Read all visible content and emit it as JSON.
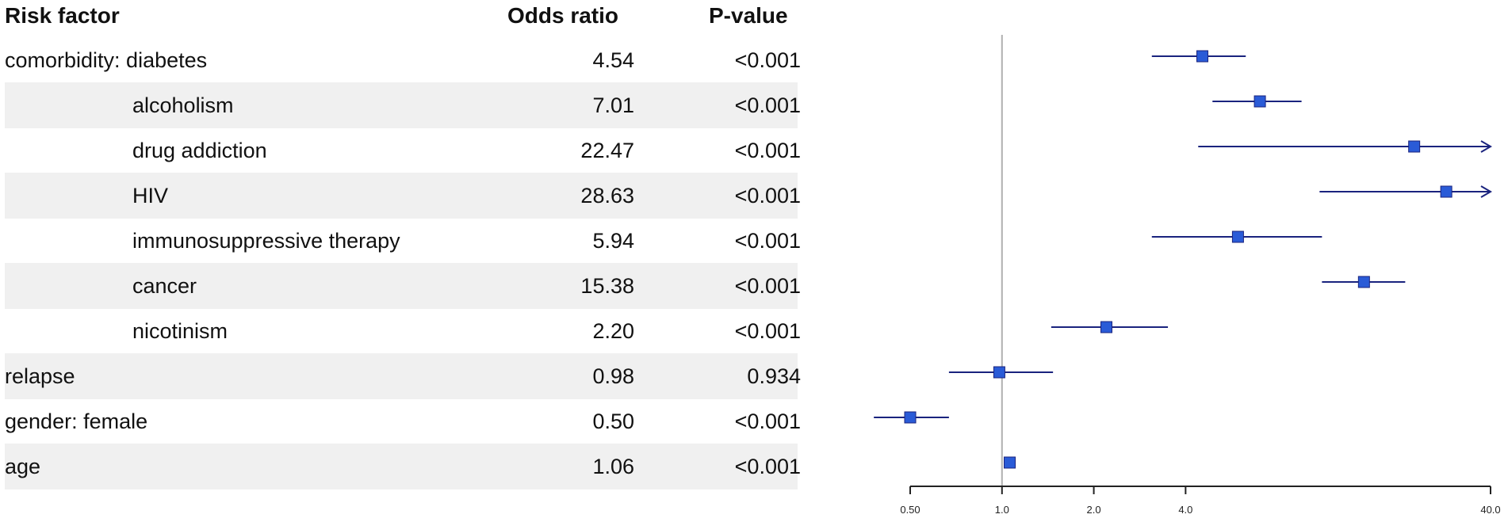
{
  "headers": {
    "factor": "Risk factor",
    "or": "Odds ratio",
    "p": "P-value"
  },
  "colors": {
    "marker": "#2a5bd7",
    "ci_line": "#1a237e",
    "reference_line": "#b0b0b0",
    "row_shade": "#f0f0f0"
  },
  "chart_data": {
    "type": "forest",
    "x_scale": "log",
    "xlim": [
      0.5,
      40.0
    ],
    "reference_value": 1.0,
    "x_ticks": [
      {
        "value": 0.5,
        "label": "0.50"
      },
      {
        "value": 1.0,
        "label": "1.0"
      },
      {
        "value": 2.0,
        "label": "2.0"
      },
      {
        "value": 4.0,
        "label": "4.0"
      },
      {
        "value": 40.0,
        "label": "40.0"
      }
    ],
    "rows": [
      {
        "label": "comorbidity: diabetes",
        "indent": false,
        "or_text": "4.54",
        "p_text": "<0.001",
        "or": 4.54,
        "lo": 3.1,
        "hi": 6.3,
        "shaded": false
      },
      {
        "label": "alcoholism",
        "indent": true,
        "or_text": "7.01",
        "p_text": "<0.001",
        "or": 7.01,
        "lo": 4.9,
        "hi": 9.6,
        "shaded": true
      },
      {
        "label": "drug addiction",
        "indent": true,
        "or_text": "22.47",
        "p_text": "<0.001",
        "or": 22.47,
        "lo": 4.4,
        "hi": 40.0,
        "arrow": true,
        "shaded": false
      },
      {
        "label": "HIV",
        "indent": true,
        "or_text": "28.63",
        "p_text": "<0.001",
        "or": 28.63,
        "lo": 11.0,
        "hi": 40.0,
        "arrow": true,
        "shaded": true
      },
      {
        "label": "immunosuppressive therapy",
        "indent": true,
        "or_text": "5.94",
        "p_text": "<0.001",
        "or": 5.94,
        "lo": 3.1,
        "hi": 11.2,
        "shaded": false
      },
      {
        "label": "cancer",
        "indent": true,
        "or_text": "15.38",
        "p_text": "<0.001",
        "or": 15.38,
        "lo": 11.2,
        "hi": 21.0,
        "shaded": true
      },
      {
        "label": "nicotinism",
        "indent": true,
        "or_text": "2.20",
        "p_text": "<0.001",
        "or": 2.2,
        "lo": 1.45,
        "hi": 3.5,
        "shaded": false
      },
      {
        "label": "relapse",
        "indent": false,
        "or_text": "0.98",
        "p_text": "0.934",
        "or": 0.98,
        "lo": 0.67,
        "hi": 1.47,
        "shaded": true
      },
      {
        "label": "gender: female",
        "indent": false,
        "or_text": "0.50",
        "p_text": "<0.001",
        "or": 0.5,
        "lo": 0.38,
        "hi": 0.67,
        "shaded": false
      },
      {
        "label": "age",
        "indent": false,
        "or_text": "1.06",
        "p_text": "<0.001",
        "or": 1.06,
        "lo": 1.04,
        "hi": 1.08,
        "shaded": true
      }
    ]
  }
}
